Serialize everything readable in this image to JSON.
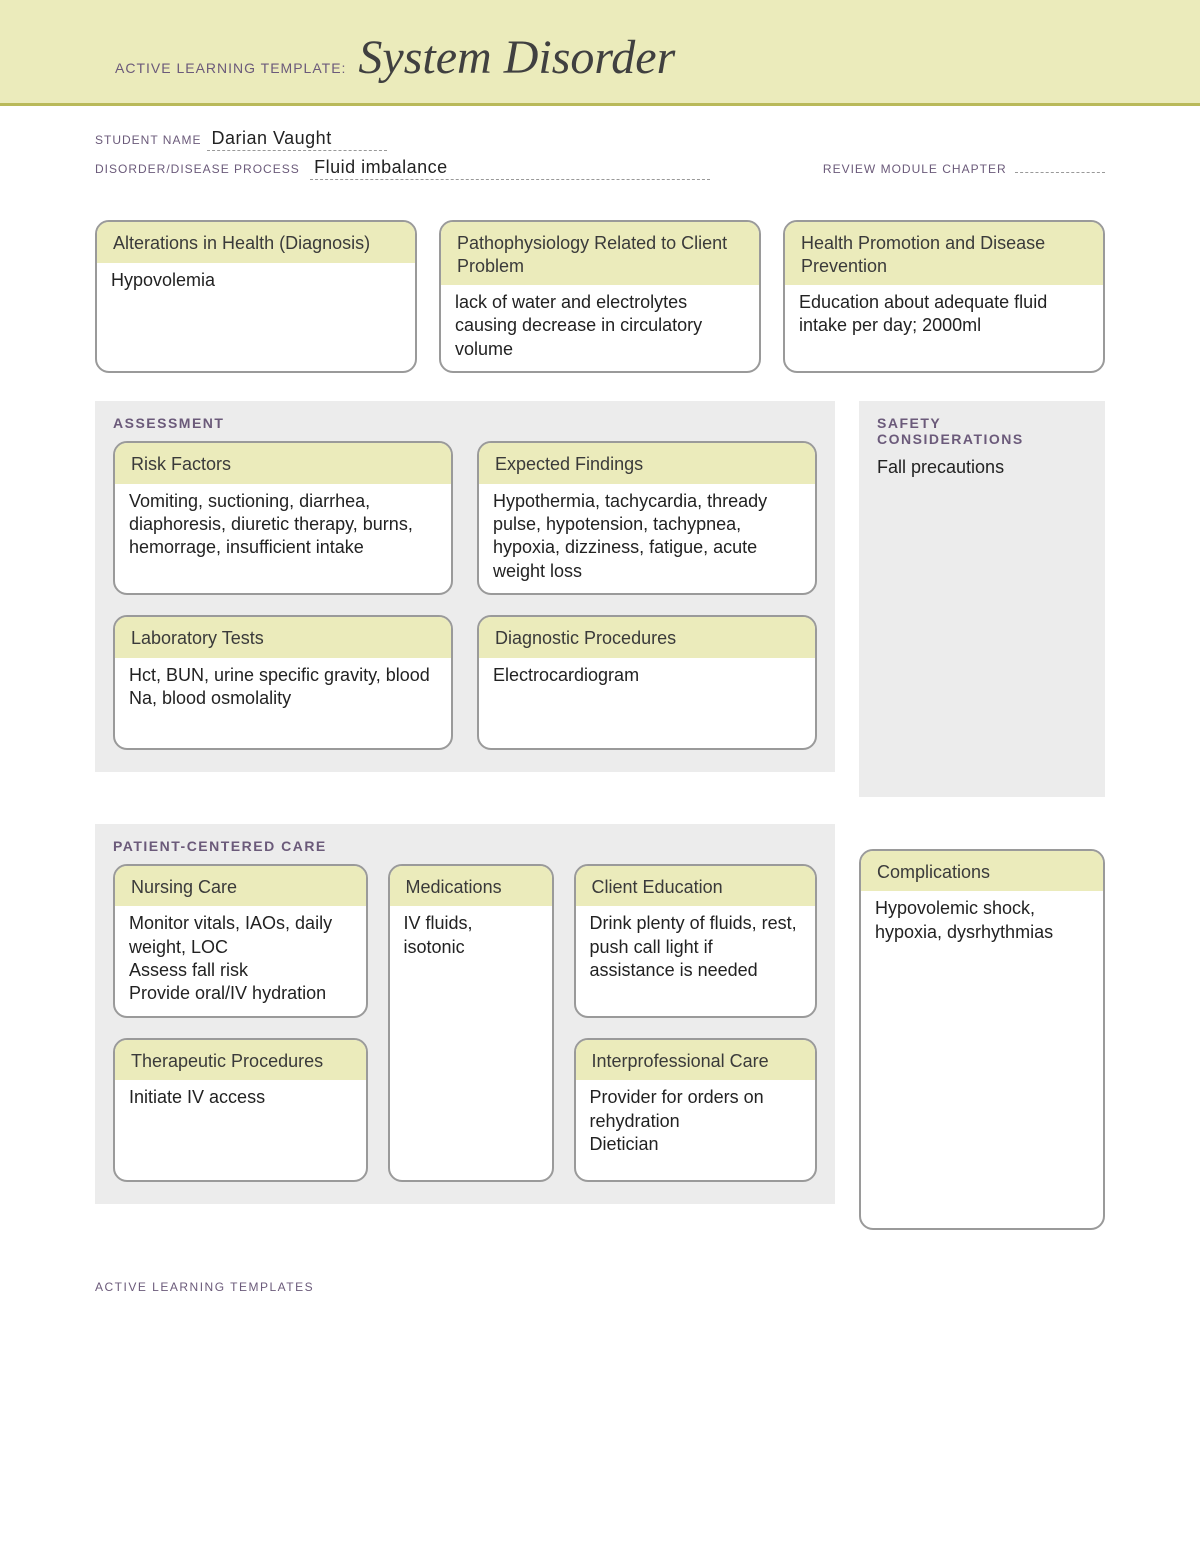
{
  "banner": {
    "label": "ACTIVE LEARNING TEMPLATE:",
    "title": "System Disorder"
  },
  "meta": {
    "student_label": "STUDENT NAME",
    "student_value": "Darian Vaught",
    "disorder_label": "DISORDER/DISEASE PROCESS",
    "disorder_value": "Fluid imbalance",
    "review_label": "REVIEW MODULE CHAPTER"
  },
  "top": {
    "alterations": {
      "title": "Alterations in\nHealth (Diagnosis)",
      "body": "Hypovolemia"
    },
    "patho": {
      "title": "Pathophysiology Related\nto Client Problem",
      "body": "lack of water and electrolytes causing decrease in circulatory volume"
    },
    "promotion": {
      "title": "Health Promotion and\nDisease Prevention",
      "body": "Education about adequate fluid intake per day; 2000ml"
    }
  },
  "assessment": {
    "title": "ASSESSMENT",
    "risk": {
      "title": "Risk Factors",
      "body": "Vomiting, suctioning, diarrhea, diaphoresis, diuretic therapy, burns, hemorrage, insufficient intake"
    },
    "findings": {
      "title": "Expected Findings",
      "body": "Hypothermia, tachycardia, thready pulse, hypotension, tachypnea, hypoxia, dizziness, fatigue, acute weight loss"
    },
    "labs": {
      "title": "Laboratory Tests",
      "body": "Hct, BUN, urine specific gravity, blood Na, blood osmolality"
    },
    "diag": {
      "title": "Diagnostic Procedures",
      "body": "Electrocardiogram"
    }
  },
  "safety": {
    "title": "SAFETY\nCONSIDERATIONS",
    "body": "Fall precautions"
  },
  "pcc": {
    "title": "PATIENT-CENTERED CARE",
    "nursing": {
      "title": "Nursing Care",
      "body": "Monitor vitals, IAOs, daily weight, LOC\nAssess fall risk\nProvide oral/IV hydration"
    },
    "meds": {
      "title": "Medications",
      "body": "IV fluids, isotonic"
    },
    "education": {
      "title": "Client Education",
      "body": "Drink plenty of fluids, rest, push call light if assistance is needed"
    },
    "therapeutic": {
      "title": "Therapeutic Procedures",
      "body": "Initiate IV access"
    },
    "interpro": {
      "title": "Interprofessional Care",
      "body": "Provider for orders on rehydration\nDietician"
    }
  },
  "complications": {
    "title": "Complications",
    "body": "Hypovolemic shock, hypoxia, dysrhythmias"
  },
  "footer": "ACTIVE LEARNING TEMPLATES"
}
